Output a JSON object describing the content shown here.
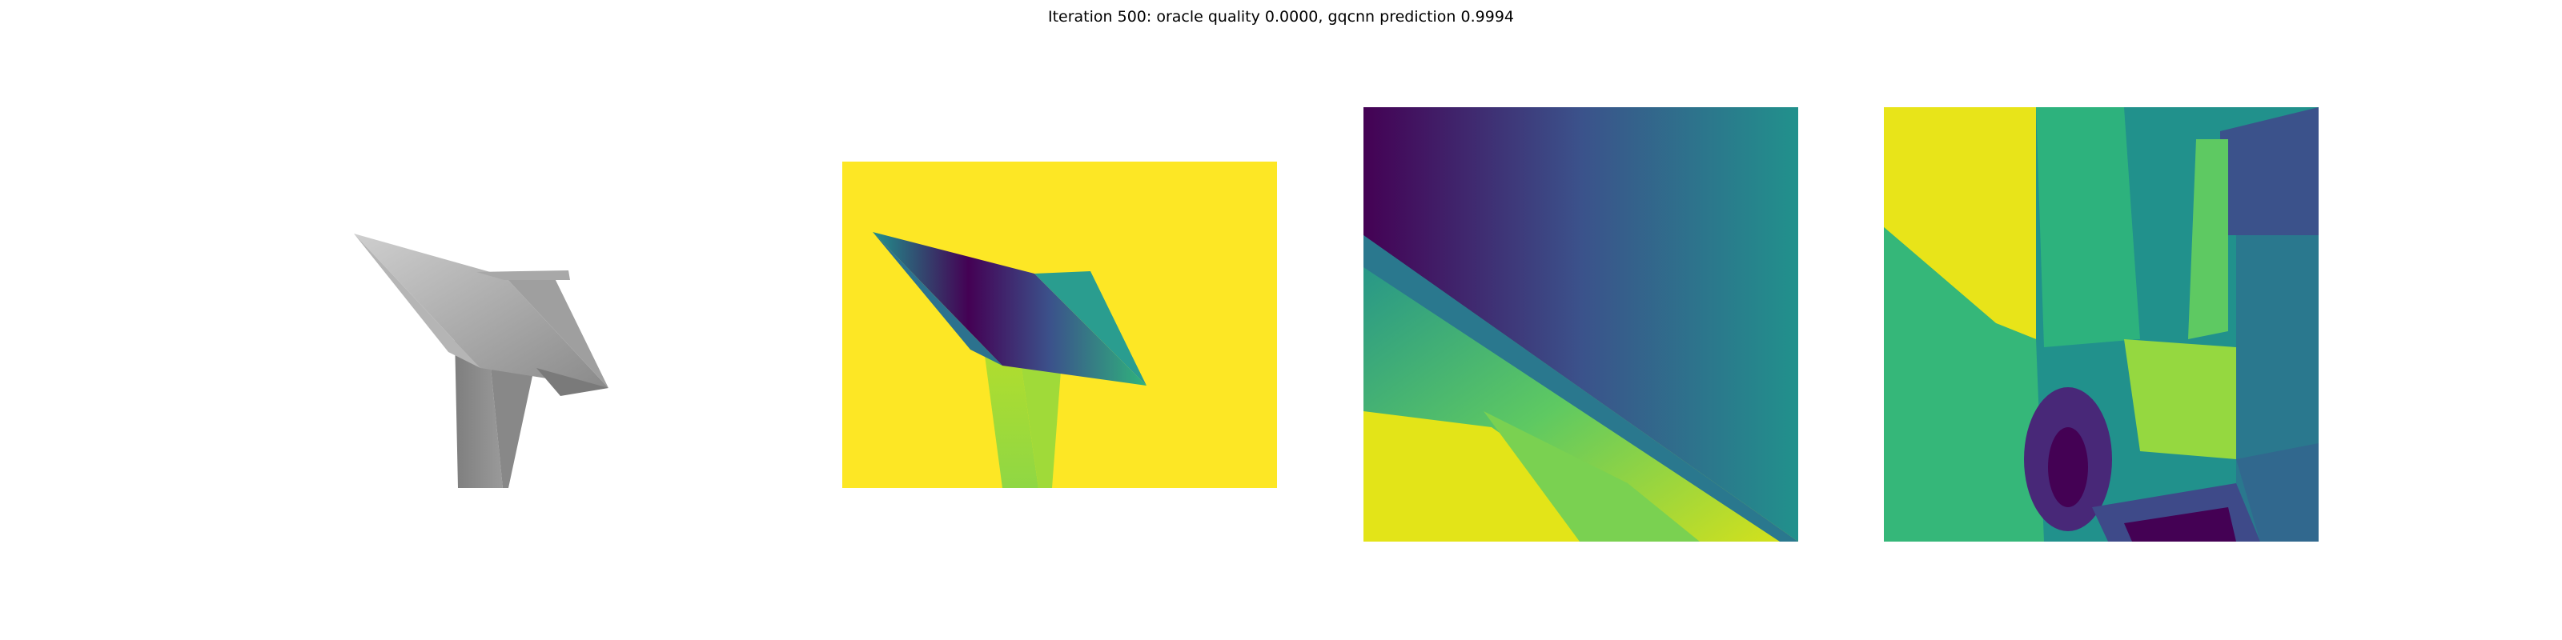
{
  "figure": {
    "title": "Iteration 500: oracle quality 0.0000, gqcnn prediction 0.9994"
  },
  "panels": [
    {
      "id": "rendered-mesh",
      "kind": "grayscale shaded 3D object render"
    },
    {
      "id": "depth-image",
      "kind": "viridis depth image of object on table"
    },
    {
      "id": "depth-crop-1",
      "kind": "viridis depth crop"
    },
    {
      "id": "depth-crop-2",
      "kind": "viridis depth crop"
    }
  ],
  "colors": {
    "viridis_dark": "#440154",
    "viridis_blue": "#3b528b",
    "viridis_teal": "#21918c",
    "viridis_green": "#5ec962",
    "viridis_yellow": "#fde725",
    "mesh_gray": "#8f8f8f"
  }
}
